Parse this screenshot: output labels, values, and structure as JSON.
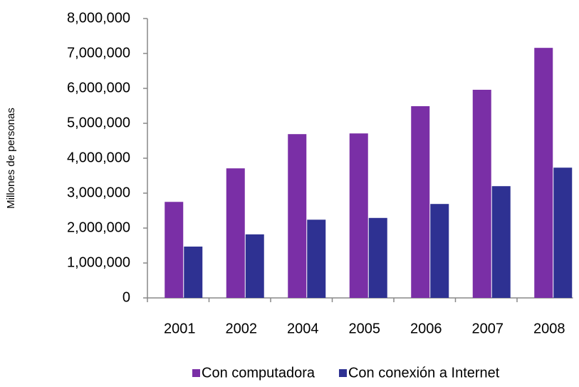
{
  "chart_data": {
    "type": "bar",
    "y_label": "Millones de personas",
    "categories": [
      "2001",
      "2002",
      "2004",
      "2005",
      "2006",
      "2007",
      "2008"
    ],
    "series": [
      {
        "name": "Con computadora",
        "color": "#7a2fa6",
        "values": [
          2750000,
          3710000,
          4690000,
          4710000,
          5490000,
          5960000,
          7160000
        ]
      },
      {
        "name": "Con conexión a Internet",
        "color": "#2e3192",
        "values": [
          1470000,
          1820000,
          2240000,
          2290000,
          2690000,
          3200000,
          3730000
        ]
      }
    ],
    "ylim": [
      0,
      8000000
    ],
    "yticks": [
      {
        "value": 0,
        "label": "0"
      },
      {
        "value": 1000000,
        "label": "1,000,000"
      },
      {
        "value": 2000000,
        "label": "2,000,000"
      },
      {
        "value": 3000000,
        "label": "3,000,000"
      },
      {
        "value": 4000000,
        "label": "4,000,000"
      },
      {
        "value": 5000000,
        "label": "5,000,000"
      },
      {
        "value": 6000000,
        "label": "6,000,000"
      },
      {
        "value": 7000000,
        "label": "7,000,000"
      },
      {
        "value": 8000000,
        "label": "8,000,000"
      }
    ],
    "legend": "bottom"
  }
}
